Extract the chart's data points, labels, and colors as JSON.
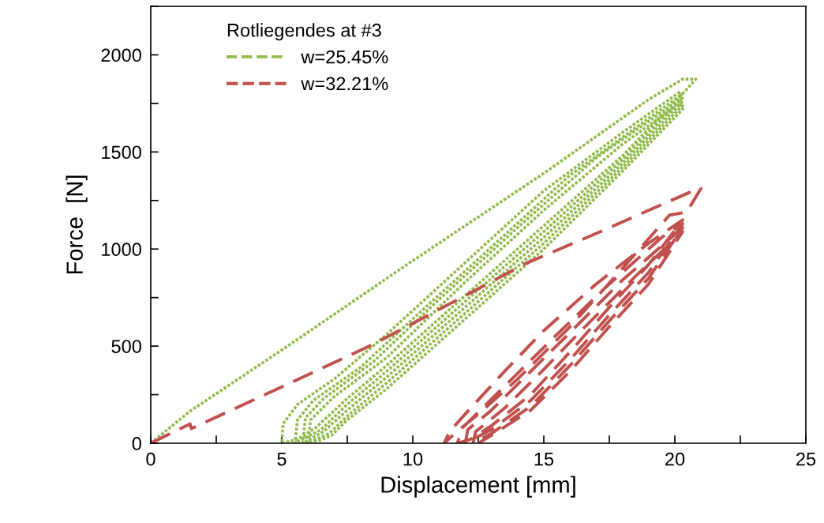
{
  "chart_data": {
    "type": "line",
    "xlabel": "Displacement [mm]",
    "ylabel": "Force  [N]",
    "legend_title": "Rotliegendes at #3",
    "legend": "top left",
    "grid": false,
    "marker": "none",
    "xlim": [
      0,
      25
    ],
    "ylim": [
      0,
      2250
    ],
    "xticks": [
      0,
      {
        "value": 2.5,
        "label": null
      },
      5,
      {
        "value": 7.5,
        "label": null
      },
      10,
      {
        "value": 12.5,
        "label": null
      },
      15,
      {
        "value": 17.5,
        "label": null
      },
      20,
      {
        "value": 22.5,
        "label": null
      },
      25
    ],
    "yticks": [
      0,
      {
        "value": 250,
        "label": null
      },
      500,
      {
        "value": 750,
        "label": null
      },
      1000,
      {
        "value": 1250,
        "label": null
      },
      1500,
      {
        "value": 1750,
        "label": null
      },
      2000,
      {
        "value": 2250,
        "label": null
      }
    ],
    "series": [
      {
        "name": "w=25.45%",
        "color": "#92bb4d",
        "line_style": "dotted",
        "x": [
          0,
          1.5,
          5,
          10,
          15,
          19,
          20.3,
          20.8,
          20.3,
          18,
          15,
          12,
          9,
          7.5,
          6.3,
          5.6,
          5.0,
          5.05,
          5.6,
          7,
          9,
          12,
          15,
          18,
          20.2,
          20.3,
          18,
          15,
          12,
          9,
          7.5,
          6.5,
          5.5,
          5.6,
          6.2,
          8,
          10,
          13,
          16,
          20.2,
          20.3,
          18,
          15,
          12,
          9,
          7.5,
          6.6,
          5.8,
          5.9,
          6.6,
          8.5,
          11,
          14,
          17,
          20.2,
          20.3,
          18,
          15,
          12,
          9,
          7.5,
          6.8,
          6.0,
          6.1,
          7,
          9,
          12,
          15,
          18,
          20.2,
          20.3,
          18,
          15,
          12,
          9,
          7.5,
          6.9,
          6.2
        ],
        "values": [
          0,
          165,
          480,
          940,
          1390,
          1770,
          1875,
          1875,
          1800,
          1480,
          1120,
          760,
          400,
          230,
          80,
          20,
          0,
          100,
          200,
          330,
          560,
          930,
          1300,
          1600,
          1810,
          1780,
          1460,
          1090,
          730,
          370,
          200,
          70,
          0,
          120,
          220,
          390,
          640,
          1010,
          1380,
          1790,
          1760,
          1440,
          1060,
          700,
          340,
          170,
          60,
          0,
          130,
          230,
          420,
          740,
          1110,
          1470,
          1770,
          1740,
          1420,
          1030,
          670,
          310,
          140,
          50,
          0,
          120,
          240,
          440,
          830,
          1200,
          1540,
          1750,
          1720,
          1400,
          1000,
          640,
          280,
          120,
          40,
          0
        ]
      },
      {
        "name": "w=32.21%",
        "color": "#c0504d",
        "line_style": "dashed",
        "x": [
          0,
          1.5,
          1.55,
          5,
          8.5,
          12,
          14.3,
          17,
          20.9,
          21.0,
          20.45,
          19.8,
          18,
          16,
          14,
          12.5,
          11.6,
          11.2,
          11.4,
          12,
          13.5,
          15,
          17,
          19,
          20.3,
          19,
          17.5,
          16,
          14.5,
          13,
          12.2,
          11.7,
          11.9,
          12.5,
          14,
          15.5,
          17.5,
          19.5,
          20.3,
          19,
          17.5,
          16,
          14.5,
          13,
          12.0,
          12.1,
          13,
          14.5,
          16,
          18,
          20.3,
          19,
          17.5,
          16,
          14.5,
          13,
          12.3,
          12.4,
          13.5,
          15,
          16.5,
          18.5,
          20.3,
          19,
          17.5,
          16,
          14.5,
          13,
          12.5
        ],
        "values": [
          0,
          100,
          75,
          290,
          510,
          760,
          925,
          1080,
          1312,
          1312,
          1190,
          1175,
          900,
          600,
          330,
          150,
          50,
          0,
          60,
          150,
          370,
          580,
          820,
          1030,
          1150,
          920,
          700,
          470,
          250,
          90,
          20,
          0,
          80,
          160,
          360,
          560,
          820,
          1060,
          1130,
          880,
          660,
          430,
          220,
          70,
          0,
          70,
          170,
          370,
          570,
          840,
          1110,
          850,
          630,
          400,
          190,
          50,
          0,
          60,
          180,
          380,
          590,
          860,
          1090,
          820,
          600,
          370,
          170,
          40,
          0
        ]
      }
    ]
  }
}
